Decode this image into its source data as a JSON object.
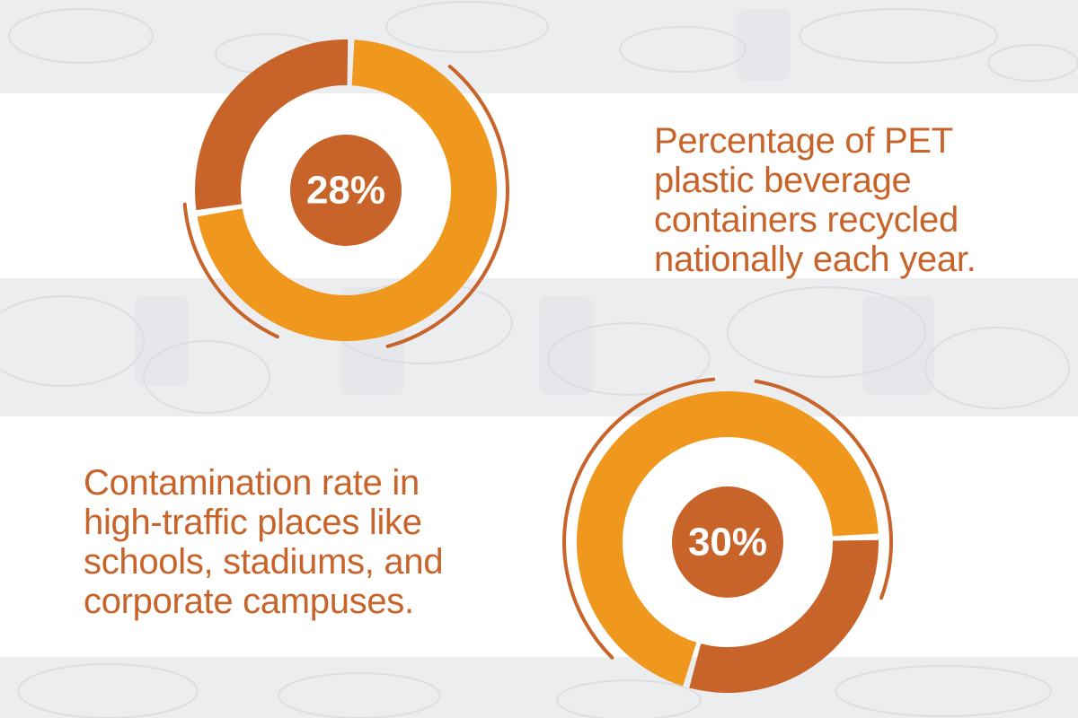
{
  "colors": {
    "dark_orange": "#c8642a",
    "light_orange": "#f0981e",
    "caption": "#c8642a",
    "band": "#ffffff",
    "background": "#ecedef"
  },
  "background": {
    "description_icon": "plastic-bottles-photo"
  },
  "chart_data": [
    {
      "type": "pie",
      "label": "28%",
      "value": 28,
      "caption": "Percentage of PET plastic beverage containers recycled nationally each year.",
      "segments": [
        {
          "value": 28,
          "color": "#c8642a"
        },
        {
          "value": 72,
          "color": "#f0981e"
        }
      ]
    },
    {
      "type": "pie",
      "label": "30%",
      "value": 30,
      "caption": "Contamination rate in high-traffic places like schools, stadiums, and corporate campuses.",
      "segments": [
        {
          "value": 30,
          "color": "#c8642a"
        },
        {
          "value": 70,
          "color": "#f0981e"
        }
      ]
    }
  ]
}
